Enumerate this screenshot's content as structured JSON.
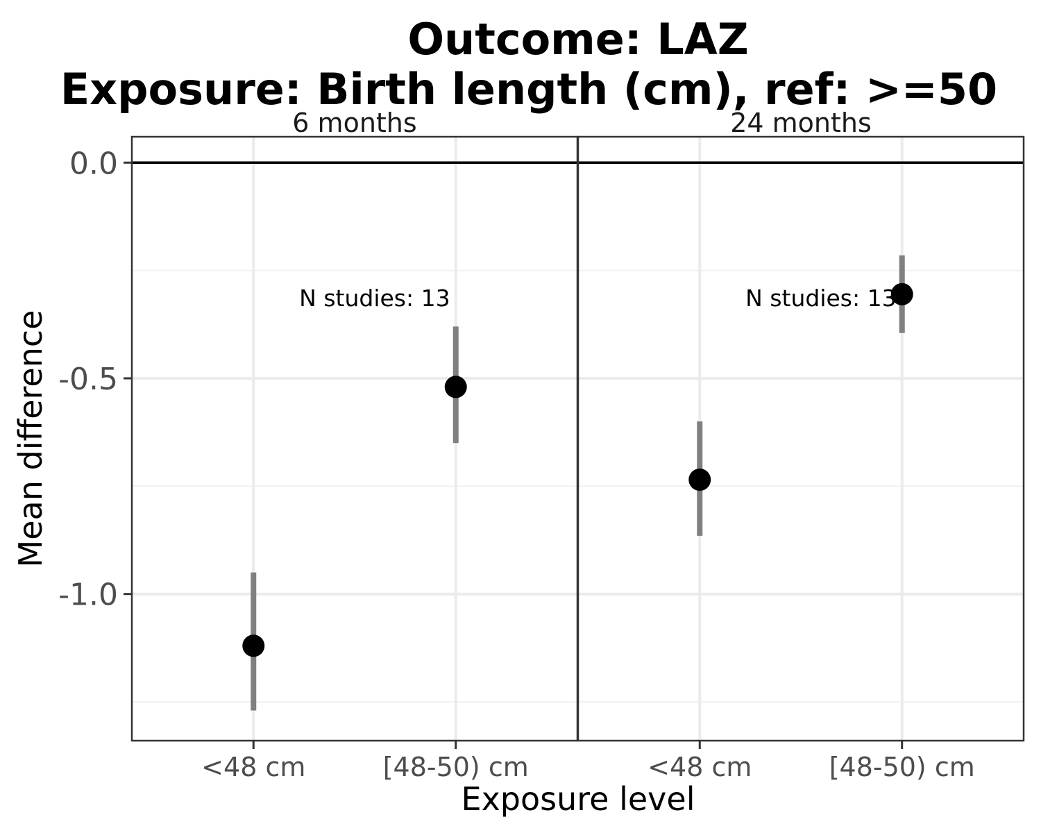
{
  "chart_data": {
    "type": "scatter",
    "title": "Outcome: LAZ",
    "subtitle": "Exposure: Birth length (cm), ref: >=50",
    "xlabel": "Exposure level",
    "ylabel": "Mean difference",
    "categories": [
      "<48 cm",
      "[48-50) cm"
    ],
    "ylim": [
      -1.34,
      0.06
    ],
    "yticks": [
      0.0,
      -0.5,
      -1.0
    ],
    "ytick_labels": [
      "0.0",
      "-0.5",
      "-1.0"
    ],
    "reference_line": 0.0,
    "grid": true,
    "point_color": "#000000",
    "ci_color": "#808080",
    "panels": [
      {
        "label": "6 months",
        "annotation": "N studies: 13",
        "points": [
          {
            "category": "<48 cm",
            "estimate": -1.12,
            "ci_lower": -1.27,
            "ci_upper": -0.95
          },
          {
            "category": "[48-50) cm",
            "estimate": -0.52,
            "ci_lower": -0.65,
            "ci_upper": -0.38
          }
        ]
      },
      {
        "label": "24 months",
        "annotation": "N studies: 13",
        "points": [
          {
            "category": "<48 cm",
            "estimate": -0.735,
            "ci_lower": -0.865,
            "ci_upper": -0.6
          },
          {
            "category": "[48-50) cm",
            "estimate": -0.305,
            "ci_lower": -0.395,
            "ci_upper": -0.215
          }
        ]
      }
    ]
  }
}
